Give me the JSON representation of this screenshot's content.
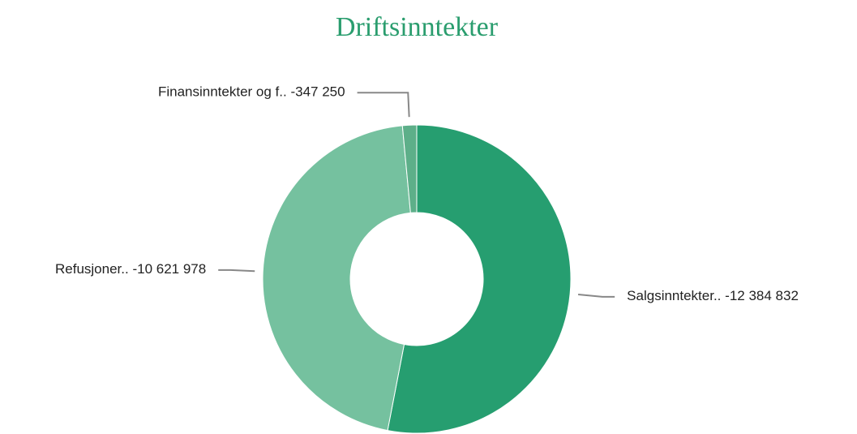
{
  "chart_data": {
    "type": "donut",
    "title": "Driftsinntekter",
    "categories": [
      "Salgsinntekter..",
      "Refusjoner..",
      "Finansinntekter og f.."
    ],
    "values": [
      -12384832,
      -10621978,
      -347250
    ],
    "value_labels": [
      "-12 384 832",
      "-10 621 978",
      "-347 250"
    ],
    "colors": [
      "#269e70",
      "#75c19f",
      "#5daf89"
    ]
  }
}
